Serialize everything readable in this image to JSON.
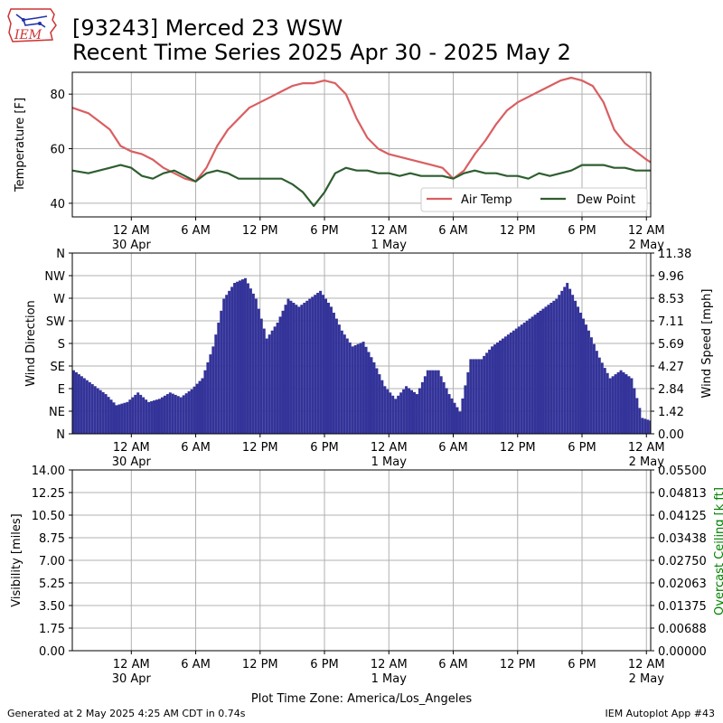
{
  "header": {
    "logo_text": "IEM",
    "title_line1": "[93243] Merced 23 WSW",
    "title_line2": "Recent Time Series 2025 Apr 30 - 2025 May 2"
  },
  "footer": {
    "generated": "Generated at 2 May 2025 4:25 AM CDT in 0.74s",
    "app": "IEM Autoplot App #43"
  },
  "colors": {
    "air_temp": "#d95f61",
    "dew_point": "#2e5e30",
    "wind_bars": "#333399",
    "grid": "#b0b0b0",
    "ceiling_label": "#008000"
  },
  "x_ticks": [
    {
      "hour": 0,
      "label": "12 AM",
      "sub": "30 Apr"
    },
    {
      "hour": 6,
      "label": "6 AM",
      "sub": ""
    },
    {
      "hour": 12,
      "label": "12 PM",
      "sub": ""
    },
    {
      "hour": 18,
      "label": "6 PM",
      "sub": ""
    },
    {
      "hour": 24,
      "label": "12 AM",
      "sub": "1 May"
    },
    {
      "hour": 30,
      "label": "6 AM",
      "sub": ""
    },
    {
      "hour": 36,
      "label": "12 PM",
      "sub": ""
    },
    {
      "hour": 42,
      "label": "6 PM",
      "sub": ""
    },
    {
      "hour": 48,
      "label": "12 AM",
      "sub": "2 May"
    }
  ],
  "x_range_hours": [
    -5.5,
    48.4
  ],
  "x_axis_title": "Plot Time Zone: America/Los_Angeles",
  "chart_data": [
    {
      "type": "line",
      "ylabel": "Temperature [F]",
      "ylim": [
        35,
        88
      ],
      "y_ticks": [
        40,
        60,
        80
      ],
      "grid": true,
      "legend_position": "lower-right",
      "x_units": "hours since 30 Apr 12 AM (America/Los_Angeles)",
      "series": [
        {
          "name": "Air Temp",
          "points": [
            [
              -5.5,
              75
            ],
            [
              -4,
              73
            ],
            [
              -3,
              70
            ],
            [
              -2,
              67
            ],
            [
              -1,
              61
            ],
            [
              0,
              59
            ],
            [
              1,
              58
            ],
            [
              2,
              56
            ],
            [
              3,
              53
            ],
            [
              4,
              51
            ],
            [
              5,
              49
            ],
            [
              6,
              48
            ],
            [
              7,
              53
            ],
            [
              8,
              61
            ],
            [
              9,
              67
            ],
            [
              10,
              71
            ],
            [
              11,
              75
            ],
            [
              12,
              77
            ],
            [
              13,
              79
            ],
            [
              14,
              81
            ],
            [
              15,
              83
            ],
            [
              16,
              84
            ],
            [
              17,
              84
            ],
            [
              18,
              85
            ],
            [
              19,
              84
            ],
            [
              20,
              80
            ],
            [
              21,
              71
            ],
            [
              22,
              64
            ],
            [
              23,
              60
            ],
            [
              24,
              58
            ],
            [
              25,
              57
            ],
            [
              26,
              56
            ],
            [
              27,
              55
            ],
            [
              28,
              54
            ],
            [
              29,
              53
            ],
            [
              30,
              49
            ],
            [
              31,
              52
            ],
            [
              32,
              58
            ],
            [
              33,
              63
            ],
            [
              34,
              69
            ],
            [
              35,
              74
            ],
            [
              36,
              77
            ],
            [
              37,
              79
            ],
            [
              38,
              81
            ],
            [
              39,
              83
            ],
            [
              40,
              85
            ],
            [
              41,
              86
            ],
            [
              42,
              85
            ],
            [
              43,
              83
            ],
            [
              44,
              77
            ],
            [
              45,
              67
            ],
            [
              46,
              62
            ],
            [
              47,
              59
            ],
            [
              48,
              56
            ],
            [
              48.4,
              55
            ]
          ]
        },
        {
          "name": "Dew Point",
          "points": [
            [
              -5.5,
              52
            ],
            [
              -4,
              51
            ],
            [
              -2,
              53
            ],
            [
              -1,
              54
            ],
            [
              0,
              53
            ],
            [
              1,
              50
            ],
            [
              2,
              49
            ],
            [
              3,
              51
            ],
            [
              4,
              52
            ],
            [
              5,
              50
            ],
            [
              6,
              48
            ],
            [
              7,
              51
            ],
            [
              8,
              52
            ],
            [
              9,
              51
            ],
            [
              10,
              49
            ],
            [
              11,
              49
            ],
            [
              12,
              49
            ],
            [
              13,
              49
            ],
            [
              14,
              49
            ],
            [
              15,
              47
            ],
            [
              16,
              44
            ],
            [
              17,
              39
            ],
            [
              18,
              44
            ],
            [
              19,
              51
            ],
            [
              20,
              53
            ],
            [
              21,
              52
            ],
            [
              22,
              52
            ],
            [
              23,
              51
            ],
            [
              24,
              51
            ],
            [
              25,
              50
            ],
            [
              26,
              51
            ],
            [
              27,
              50
            ],
            [
              28,
              50
            ],
            [
              29,
              50
            ],
            [
              30,
              49
            ],
            [
              31,
              51
            ],
            [
              32,
              52
            ],
            [
              33,
              51
            ],
            [
              34,
              51
            ],
            [
              35,
              50
            ],
            [
              36,
              50
            ],
            [
              37,
              49
            ],
            [
              38,
              51
            ],
            [
              39,
              50
            ],
            [
              40,
              51
            ],
            [
              41,
              52
            ],
            [
              42,
              54
            ],
            [
              43,
              54
            ],
            [
              44,
              54
            ],
            [
              45,
              53
            ],
            [
              46,
              53
            ],
            [
              47,
              52
            ],
            [
              48,
              52
            ],
            [
              48.4,
              52
            ]
          ]
        }
      ]
    },
    {
      "type": "bar",
      "ylabel": "Wind Direction",
      "y2label": "Wind Speed [mph]",
      "direction_ticks": [
        "N",
        "NE",
        "E",
        "SE",
        "S",
        "SW",
        "W",
        "NW",
        "N"
      ],
      "speed_ticks": [
        "0.00",
        "1.42",
        "2.84",
        "4.27",
        "5.69",
        "7.11",
        "8.53",
        "9.96",
        "11.38"
      ],
      "ylim": [
        0,
        11.38
      ],
      "grid": true,
      "series": [
        {
          "name": "Wind Speed",
          "points": [
            [
              -5.5,
              4.0
            ],
            [
              -4.5,
              3.5
            ],
            [
              -3.5,
              3.0
            ],
            [
              -2.5,
              2.5
            ],
            [
              -1.5,
              1.8
            ],
            [
              -0.5,
              2.0
            ],
            [
              0.5,
              2.6
            ],
            [
              1.5,
              2.0
            ],
            [
              2.5,
              2.2
            ],
            [
              3.5,
              2.6
            ],
            [
              4.5,
              2.3
            ],
            [
              5.5,
              2.8
            ],
            [
              6.5,
              3.5
            ],
            [
              7.5,
              5.5
            ],
            [
              8.5,
              8.5
            ],
            [
              9.5,
              9.5
            ],
            [
              10.5,
              9.8
            ],
            [
              11.5,
              8.5
            ],
            [
              12.5,
              6.0
            ],
            [
              13.5,
              7.0
            ],
            [
              14.5,
              8.5
            ],
            [
              15.5,
              8.0
            ],
            [
              16.5,
              8.5
            ],
            [
              17.5,
              9.0
            ],
            [
              18.5,
              8.0
            ],
            [
              19.5,
              6.5
            ],
            [
              20.5,
              5.5
            ],
            [
              21.5,
              5.8
            ],
            [
              22.5,
              4.5
            ],
            [
              23.5,
              3.0
            ],
            [
              24.5,
              2.2
            ],
            [
              25.5,
              3.0
            ],
            [
              26.5,
              2.5
            ],
            [
              27.5,
              4.0
            ],
            [
              28.5,
              4.0
            ],
            [
              29.5,
              2.5
            ],
            [
              30.5,
              1.4
            ],
            [
              31.5,
              4.7
            ],
            [
              32.5,
              4.7
            ],
            [
              33.5,
              5.5
            ],
            [
              34.5,
              6.0
            ],
            [
              35.5,
              6.5
            ],
            [
              36.5,
              7.0
            ],
            [
              37.5,
              7.5
            ],
            [
              38.5,
              8.0
            ],
            [
              39.5,
              8.5
            ],
            [
              40.5,
              9.5
            ],
            [
              41.5,
              8.0
            ],
            [
              42.5,
              6.5
            ],
            [
              43.5,
              4.8
            ],
            [
              44.5,
              3.5
            ],
            [
              45.5,
              4.0
            ],
            [
              46.5,
              3.5
            ],
            [
              47.5,
              1.0
            ],
            [
              48.4,
              0.8
            ]
          ]
        }
      ]
    },
    {
      "type": "line",
      "ylabel": "Visibility [miles]",
      "y2label": "Overcast Ceiling [k ft]",
      "ylim": [
        0,
        14
      ],
      "y_ticks": [
        "0.00",
        "1.75",
        "3.50",
        "5.25",
        "7.00",
        "8.75",
        "10.50",
        "12.25",
        "14.00"
      ],
      "y2_ticks": [
        "0.00000",
        "0.00688",
        "0.01375",
        "0.02063",
        "0.02750",
        "0.03438",
        "0.04125",
        "0.04813",
        "0.05500"
      ],
      "grid": true,
      "series": []
    }
  ]
}
